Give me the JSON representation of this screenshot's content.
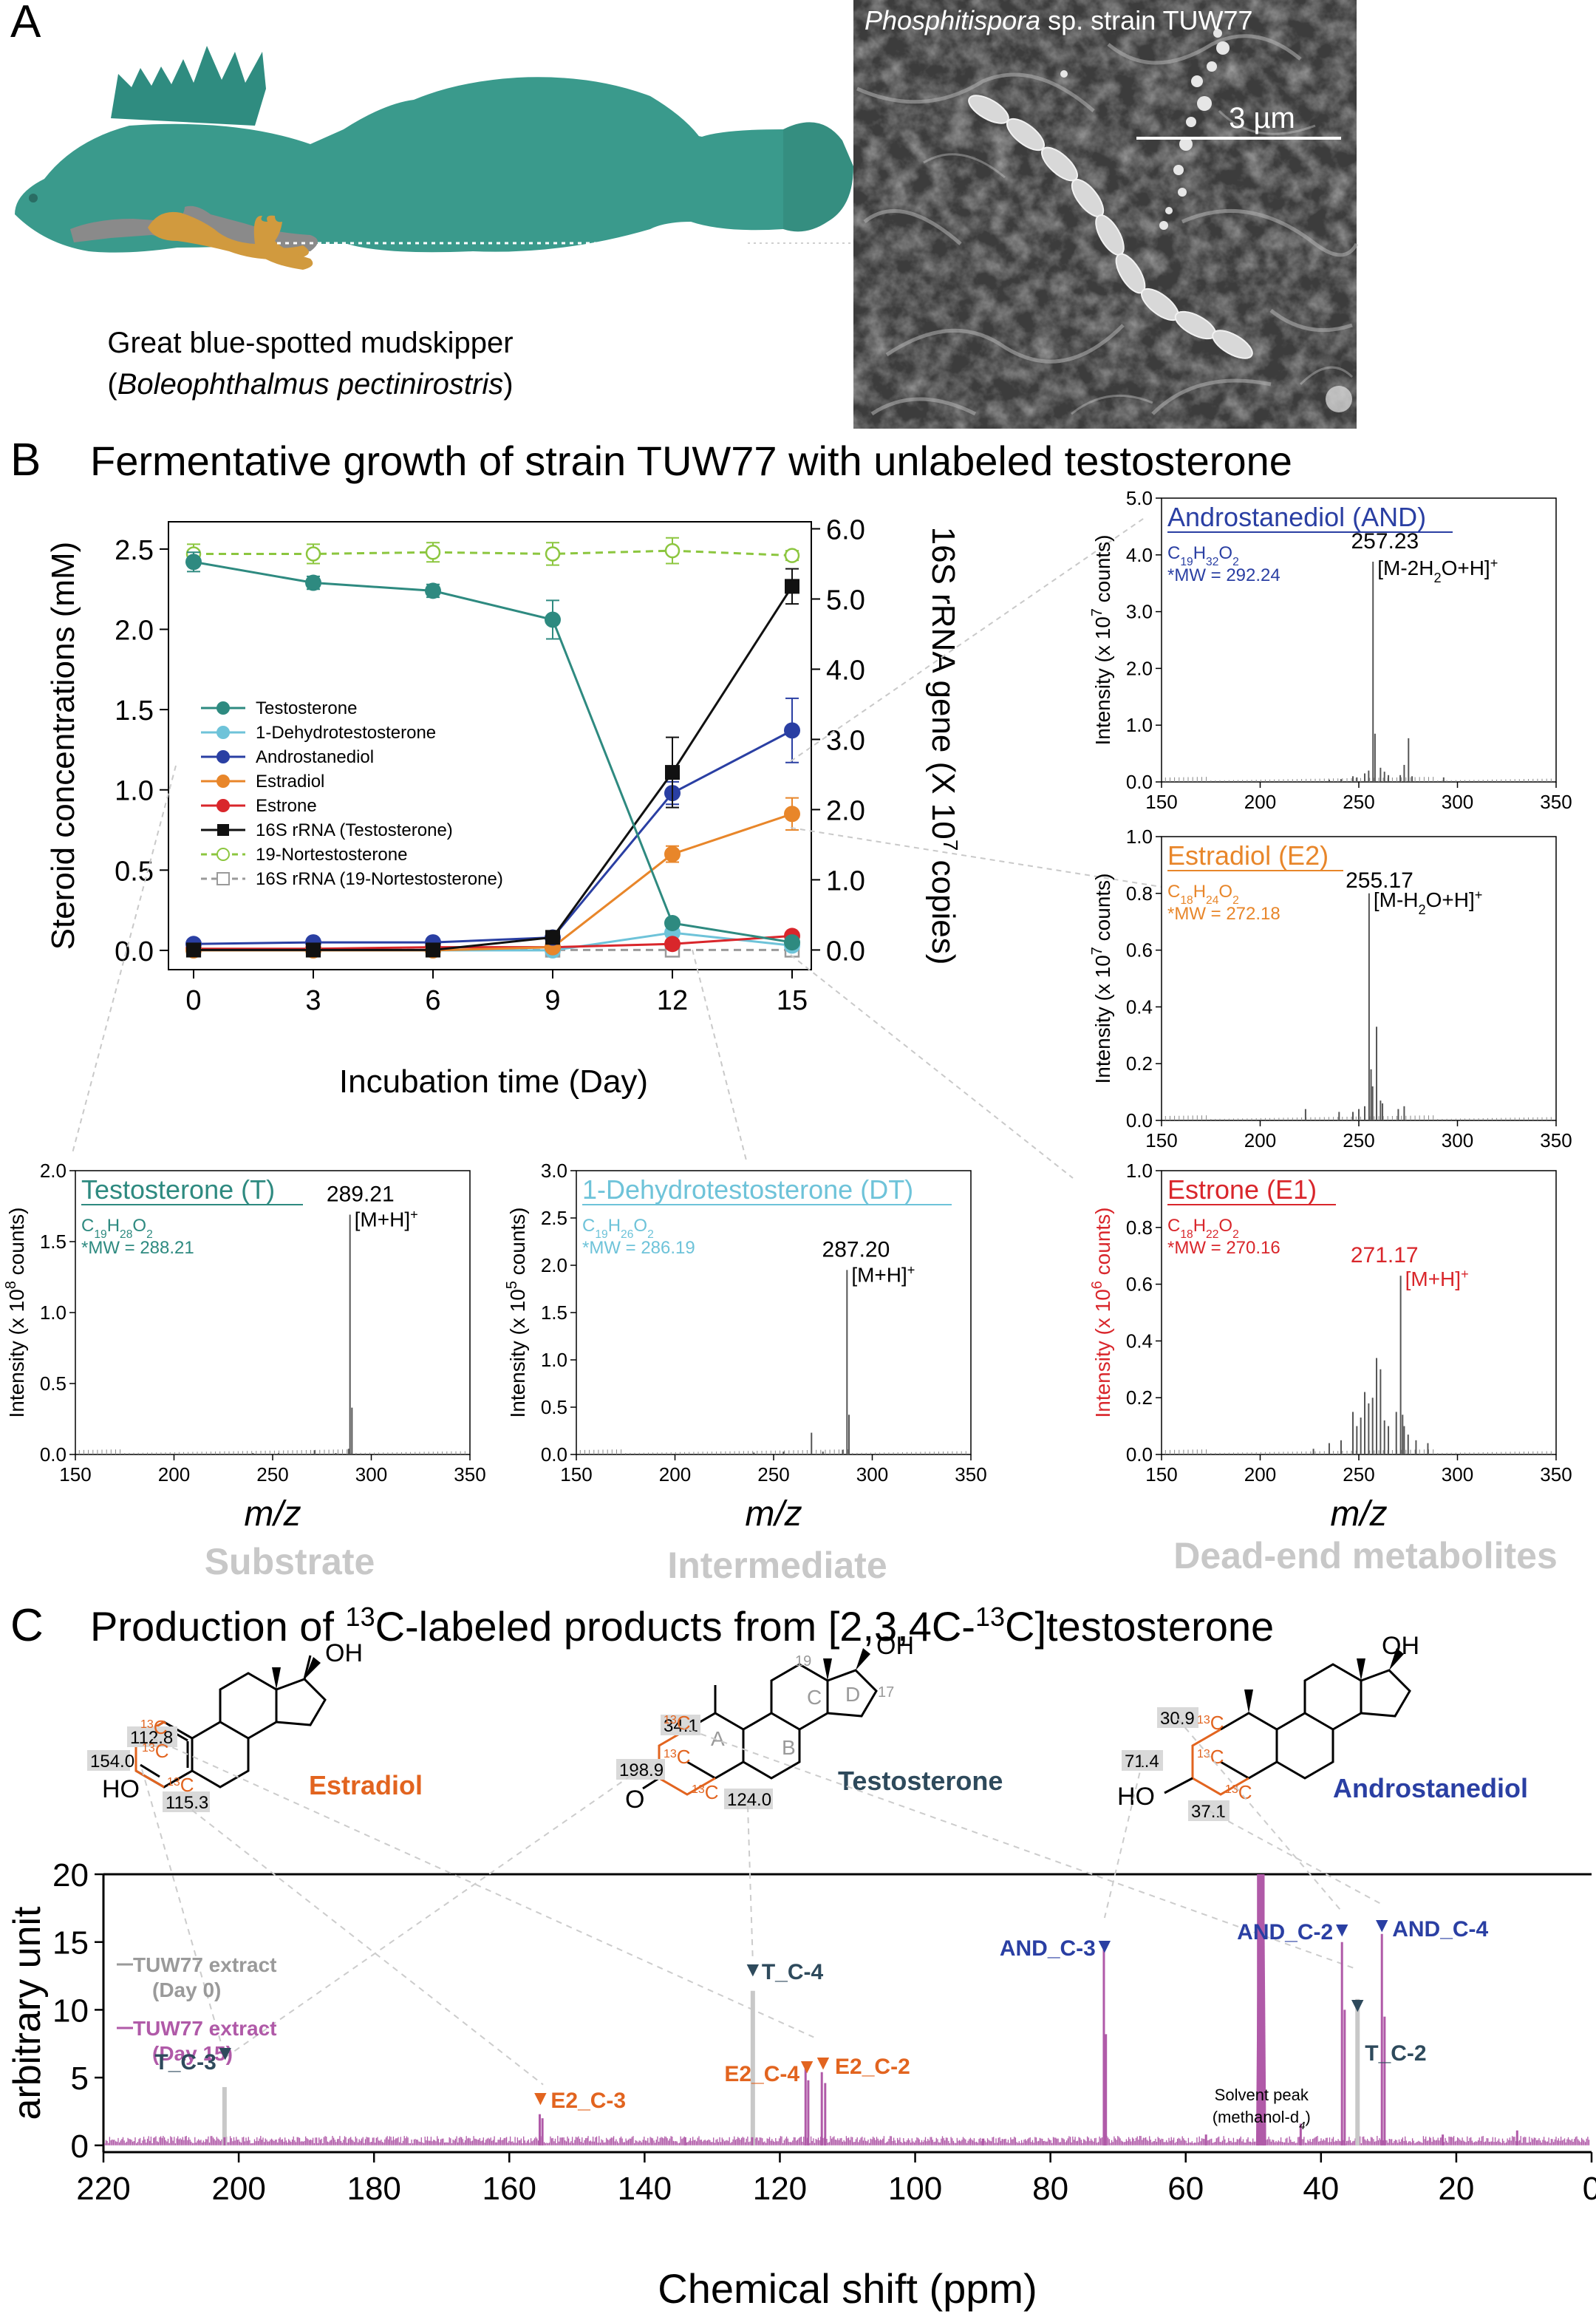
{
  "panel_a": {
    "letter": "A",
    "fish_caption": "Great blue-spotted mudskipper",
    "fish_latin_open": "(",
    "fish_latin": "Boleophthalmus pectinirostris",
    "fish_latin_close": ")",
    "micro_title_italic": "Phosphitispora",
    "micro_title_rest": " sp. strain TUW77",
    "scale_bar": "3 µm"
  },
  "panel_b": {
    "letter": "B",
    "title": "Fermentative growth of strain TUW77 with unlabeled testosterone",
    "labels": {
      "substrate": "Substrate",
      "intermediate": "Intermediate",
      "dead_end": "Dead-end metabolites"
    }
  },
  "panel_c": {
    "letter": "C",
    "title_a": "Production of ",
    "title_sup1": "13",
    "title_b": "C-labeled products from [2,3,4C-",
    "title_sup2": "13",
    "title_c": "C]testosterone",
    "structures": {
      "estradiol": {
        "name": "Estradiol",
        "oh": "OH",
        "ho": "HO",
        "c2": "112.8",
        "c3": "154.0",
        "c4": "115.3",
        "c13": "13",
        "c": "C"
      },
      "testosterone": {
        "name": "Testosterone",
        "oh": "OH",
        "o": "O",
        "c2": "34.1",
        "c3": "198.9",
        "c4": "124.0",
        "n19": "19",
        "n17": "17",
        "rA": "A",
        "rB": "B",
        "rC": "C",
        "rD": "D",
        "n5": "5",
        "n1": "1",
        "c13": "13",
        "c": "C"
      },
      "androstanediol": {
        "name": "Androstanediol",
        "oh": "OH",
        "ho": "HO",
        "c2": "30.9",
        "c3": "71.4",
        "c4": "37.1",
        "c13": "13",
        "c": "C"
      }
    }
  },
  "colors": {
    "testosterone": "#2e8a80",
    "dht": "#6ec3d9",
    "and": "#2a3fa3",
    "e2": "#e8862a",
    "e1": "#d9262b",
    "rrna": "#111111",
    "nort": "#8cc63f",
    "rrna_nort": "#9a9a9a",
    "nmr": "#b05aa8",
    "teal_dark": "#2e4a5c",
    "orange_label": "#e2641f"
  },
  "chart_data": [
    {
      "type": "line",
      "id": "growth",
      "x": [
        0,
        3,
        6,
        9,
        12,
        15
      ],
      "xlabel": "Incubation time (Day)",
      "ylabel": "Steroid concentrations (mM)",
      "y2label_a": "16S rRNA gene (X 10",
      "y2label_sup": "7",
      "y2label_b": " copies)",
      "xticks": [
        "0",
        "3",
        "6",
        "9",
        "12",
        "15"
      ],
      "yticks": [
        "0.0",
        "0.5",
        "1.0",
        "1.5",
        "2.0",
        "2.5"
      ],
      "y2ticks": [
        "0.0",
        "1.0",
        "2.0",
        "3.0",
        "4.0",
        "5.0",
        "6.0"
      ],
      "ylim": [
        -0.12,
        2.67
      ],
      "y2lim": [
        -0.28,
        6.1
      ],
      "legend_position": "left-center",
      "series": [
        {
          "name": "Testosterone",
          "axis": "left",
          "marker": "circle",
          "values": [
            2.42,
            2.29,
            2.24,
            2.06,
            0.17,
            0.05
          ],
          "err": [
            0.06,
            0.04,
            0.04,
            0.12,
            0.02,
            0.01
          ]
        },
        {
          "name": "1-Dehydrotestosterone",
          "axis": "left",
          "marker": "circle",
          "values": [
            0.0,
            0.0,
            0.0,
            0.0,
            0.11,
            0.03
          ],
          "err": [
            0,
            0,
            0,
            0,
            0.01,
            0.01
          ]
        },
        {
          "name": "Androstanediol",
          "axis": "left",
          "marker": "circle",
          "values": [
            0.04,
            0.05,
            0.05,
            0.08,
            0.98,
            1.37
          ],
          "err": [
            0,
            0,
            0,
            0.01,
            0.07,
            0.2
          ]
        },
        {
          "name": "Estradiol",
          "axis": "left",
          "marker": "circle",
          "values": [
            0.0,
            0.0,
            0.0,
            0.02,
            0.6,
            0.85
          ],
          "err": [
            0,
            0,
            0,
            0,
            0.05,
            0.1
          ]
        },
        {
          "name": "Estrone",
          "axis": "left",
          "marker": "circle",
          "values": [
            0.01,
            0.01,
            0.02,
            0.02,
            0.04,
            0.09
          ],
          "err": [
            0,
            0,
            0,
            0,
            0,
            0.01
          ]
        },
        {
          "name": "16S rRNA (Testosterone)",
          "axis": "right",
          "marker": "square",
          "values": [
            0.0,
            0.0,
            0.0,
            0.18,
            2.53,
            5.18
          ],
          "err": [
            0,
            0,
            0,
            0.05,
            0.5,
            0.25
          ]
        },
        {
          "name": "19-Nortestosterone",
          "axis": "left",
          "marker": "open-circle",
          "dash": true,
          "values": [
            2.47,
            2.47,
            2.48,
            2.47,
            2.49,
            2.46
          ],
          "err": [
            0.06,
            0.06,
            0.06,
            0.07,
            0.08,
            0.03
          ]
        },
        {
          "name": "16S rRNA (19-Nortestosterone)",
          "axis": "right",
          "marker": "open-square",
          "dash": true,
          "values": [
            0.0,
            0.0,
            0.0,
            0.0,
            0.0,
            0.0
          ],
          "err": [
            0,
            0,
            0,
            0,
            0,
            0
          ]
        }
      ]
    },
    {
      "type": "bar",
      "id": "ms_t",
      "title": "Testosterone (T)",
      "formula": "C<sub>19</sub>H<sub>28</sub>O<sub>2</sub>",
      "mw": "*MW = 288.21",
      "peak_label": "289.21",
      "ion": "[M+H]<sup>+</sup>",
      "ylabel_a": "Intensity (x 10",
      "ylabel_sup": "8",
      "ylabel_b": " counts)",
      "xlabel": "m/z",
      "xlim": [
        150,
        350
      ],
      "ylim": [
        0,
        2.0
      ],
      "xticks": [
        "150",
        "200",
        "250",
        "300",
        "350"
      ],
      "yticks": [
        "0.0",
        "0.5",
        "1.0",
        "1.5",
        "2.0"
      ],
      "peaks": [
        [
          289.2,
          1.69
        ],
        [
          290.2,
          0.33
        ],
        [
          288.5,
          0.04
        ],
        [
          271.2,
          0.03
        ],
        [
          253,
          0.01
        ],
        [
          240,
          0.01
        ],
        [
          282,
          0.01
        ]
      ]
    },
    {
      "type": "bar",
      "id": "ms_dt",
      "title": "1-Dehydrotestosterone (DT)",
      "formula": "C<sub>19</sub>H<sub>26</sub>O<sub>2</sub>",
      "mw": "*MW = 286.19",
      "peak_label": "287.20",
      "ion": "[M+H]<sup>+</sup>",
      "ylabel_a": "Intensity (x 10",
      "ylabel_sup": "5",
      "ylabel_b": " counts)",
      "xlabel": "m/z",
      "xlim": [
        150,
        350
      ],
      "ylim": [
        0,
        3.0
      ],
      "xticks": [
        "150",
        "200",
        "250",
        "300",
        "350"
      ],
      "yticks": [
        "0.0",
        "0.5",
        "1.0",
        "1.5",
        "2.0",
        "2.5",
        "3.0"
      ],
      "peaks": [
        [
          287.2,
          1.95
        ],
        [
          288.2,
          0.42
        ],
        [
          269.2,
          0.23
        ],
        [
          285,
          0.05
        ],
        [
          255,
          0.03
        ],
        [
          275,
          0.03
        ],
        [
          240,
          0.02
        ]
      ]
    },
    {
      "type": "bar",
      "id": "ms_and",
      "title": "Androstanediol (AND)",
      "formula": "C<sub>19</sub>H<sub>32</sub>O<sub>2</sub>",
      "mw": "*MW = 292.24",
      "peak_label": "257.23",
      "ion": "[M-2H<sub>2</sub>O+H]<sup>+</sup>",
      "ylabel_a": "Intensity (x 10",
      "ylabel_sup": "7",
      "ylabel_b": " counts)",
      "xlabel": "",
      "xlim": [
        150,
        350
      ],
      "ylim": [
        0,
        5.0
      ],
      "xticks": [
        "150",
        "200",
        "250",
        "300",
        "350"
      ],
      "yticks": [
        "0.0",
        "1.0",
        "2.0",
        "3.0",
        "4.0",
        "5.0"
      ],
      "peaks": [
        [
          257.2,
          3.88
        ],
        [
          258.2,
          0.85
        ],
        [
          275.2,
          0.77
        ],
        [
          273,
          0.3
        ],
        [
          261,
          0.25
        ],
        [
          255,
          0.2
        ],
        [
          253,
          0.15
        ],
        [
          247,
          0.1
        ],
        [
          249,
          0.08
        ],
        [
          263,
          0.18
        ],
        [
          265,
          0.12
        ],
        [
          271,
          0.12
        ],
        [
          277,
          0.1
        ],
        [
          293,
          0.08
        ],
        [
          235,
          0.04
        ],
        [
          241,
          0.05
        ]
      ]
    },
    {
      "type": "bar",
      "id": "ms_e2",
      "title": "Estradiol (E2)",
      "formula": "C<sub>18</sub>H<sub>24</sub>O<sub>2</sub>",
      "mw": "*MW = 272.18",
      "peak_label": "255.17",
      "ion": "[M-H<sub>2</sub>O+H]<sup>+</sup>",
      "ylabel_a": "Intensity (x 10",
      "ylabel_sup": "7",
      "ylabel_b": " counts)",
      "xlabel": "",
      "xlim": [
        150,
        350
      ],
      "ylim": [
        0,
        1.0
      ],
      "xticks": [
        "150",
        "200",
        "250",
        "300",
        "350"
      ],
      "yticks": [
        "0.0",
        "0.2",
        "0.4",
        "0.6",
        "0.8",
        "1.0"
      ],
      "peaks": [
        [
          255.2,
          0.8
        ],
        [
          256.2,
          0.18
        ],
        [
          259,
          0.33
        ],
        [
          257,
          0.12
        ],
        [
          253,
          0.05
        ],
        [
          250,
          0.04
        ],
        [
          261,
          0.07
        ],
        [
          262,
          0.06
        ],
        [
          273,
          0.05
        ],
        [
          270,
          0.04
        ],
        [
          223,
          0.04
        ],
        [
          240,
          0.03
        ],
        [
          247,
          0.03
        ]
      ]
    },
    {
      "type": "bar",
      "id": "ms_e1",
      "title": "Estrone (E1)",
      "formula": "C<sub>18</sub>H<sub>22</sub>O<sub>2</sub>",
      "mw": "*MW = 270.16",
      "peak_label": "271.17",
      "ion": "[M+H]<sup>+</sup>",
      "ylabel_a": "Intensity (x 10",
      "ylabel_sup": "6",
      "ylabel_b": " counts)",
      "xlabel": "m/z",
      "xlim": [
        150,
        350
      ],
      "ylim": [
        0,
        1.0
      ],
      "xticks": [
        "150",
        "200",
        "250",
        "300",
        "350"
      ],
      "yticks": [
        "0.0",
        "0.2",
        "0.4",
        "0.6",
        "0.8",
        "1.0"
      ],
      "peaks": [
        [
          271.2,
          0.63
        ],
        [
          272.2,
          0.14
        ],
        [
          259,
          0.34
        ],
        [
          261,
          0.3
        ],
        [
          253,
          0.22
        ],
        [
          255,
          0.18
        ],
        [
          257,
          0.2
        ],
        [
          263,
          0.12
        ],
        [
          265,
          0.1
        ],
        [
          247,
          0.15
        ],
        [
          249,
          0.1
        ],
        [
          251,
          0.13
        ],
        [
          269,
          0.15
        ],
        [
          273,
          0.1
        ],
        [
          275,
          0.07
        ],
        [
          279,
          0.05
        ],
        [
          285,
          0.04
        ],
        [
          235,
          0.04
        ],
        [
          241,
          0.05
        ],
        [
          227,
          0.02
        ]
      ]
    },
    {
      "type": "line",
      "id": "nmr",
      "xlabel": "Chemical shift (ppm)",
      "ylabel": "arbitrary unit",
      "xlim": [
        220,
        0
      ],
      "ylim": [
        -0.5,
        20
      ],
      "xticks": [
        "220",
        "200",
        "180",
        "160",
        "140",
        "120",
        "100",
        "80",
        "60",
        "40",
        "20",
        "0"
      ],
      "yticks": [
        "0",
        "5",
        "10",
        "15",
        "20"
      ],
      "legend": [
        {
          "name": "TUW77 extract",
          "sub": "(Day 0)"
        },
        {
          "name": "TUW77 extract",
          "sub": "(Day 15)"
        }
      ],
      "series": [
        {
          "name": "TUW77 extract (Day 0)",
          "peaks": [
            [
              202.1,
              4.3
            ],
            [
              124.0,
              11.4
            ],
            [
              34.6,
              10.8
            ]
          ]
        },
        {
          "name": "TUW77 extract (Day 15)",
          "peaks": [
            [
              202.1,
              0.6
            ],
            [
              155.5,
              2.3
            ],
            [
              155.1,
              2.0
            ],
            [
              124.1,
              0.6
            ],
            [
              116.2,
              5.9
            ],
            [
              115.8,
              4.8
            ],
            [
              113.8,
              5.4
            ],
            [
              113.3,
              4.6
            ],
            [
              72.1,
              14.6
            ],
            [
              71.8,
              8.2
            ],
            [
              49.3,
              20
            ],
            [
              48.5,
              20
            ],
            [
              36.9,
              15.0
            ],
            [
              36.5,
              10.0
            ],
            [
              31.0,
              15.6
            ],
            [
              30.6,
              9.5
            ],
            [
              134,
              0.6
            ],
            [
              90,
              0.5
            ],
            [
              57,
              0.8
            ],
            [
              43,
              1.6
            ],
            [
              22,
              0.8
            ],
            [
              11,
              1.1
            ]
          ]
        }
      ],
      "annotations": {
        "t_c3": "T_C-3",
        "t_c4": "T_C-4",
        "t_c2": "T_C-2",
        "e2_c3": "E2_C-3",
        "e2_c4": "E2_C-4",
        "e2_c2": "E2_C-2",
        "and_c3": "AND_C-3",
        "and_c2": "AND_C-2",
        "and_c4": "AND_C-4",
        "solvent": "Solvent peak",
        "solvent2": "(methanol-d",
        "solvent2_sub": "4",
        "solvent2_close": ")",
        "tri": "▼"
      }
    }
  ]
}
